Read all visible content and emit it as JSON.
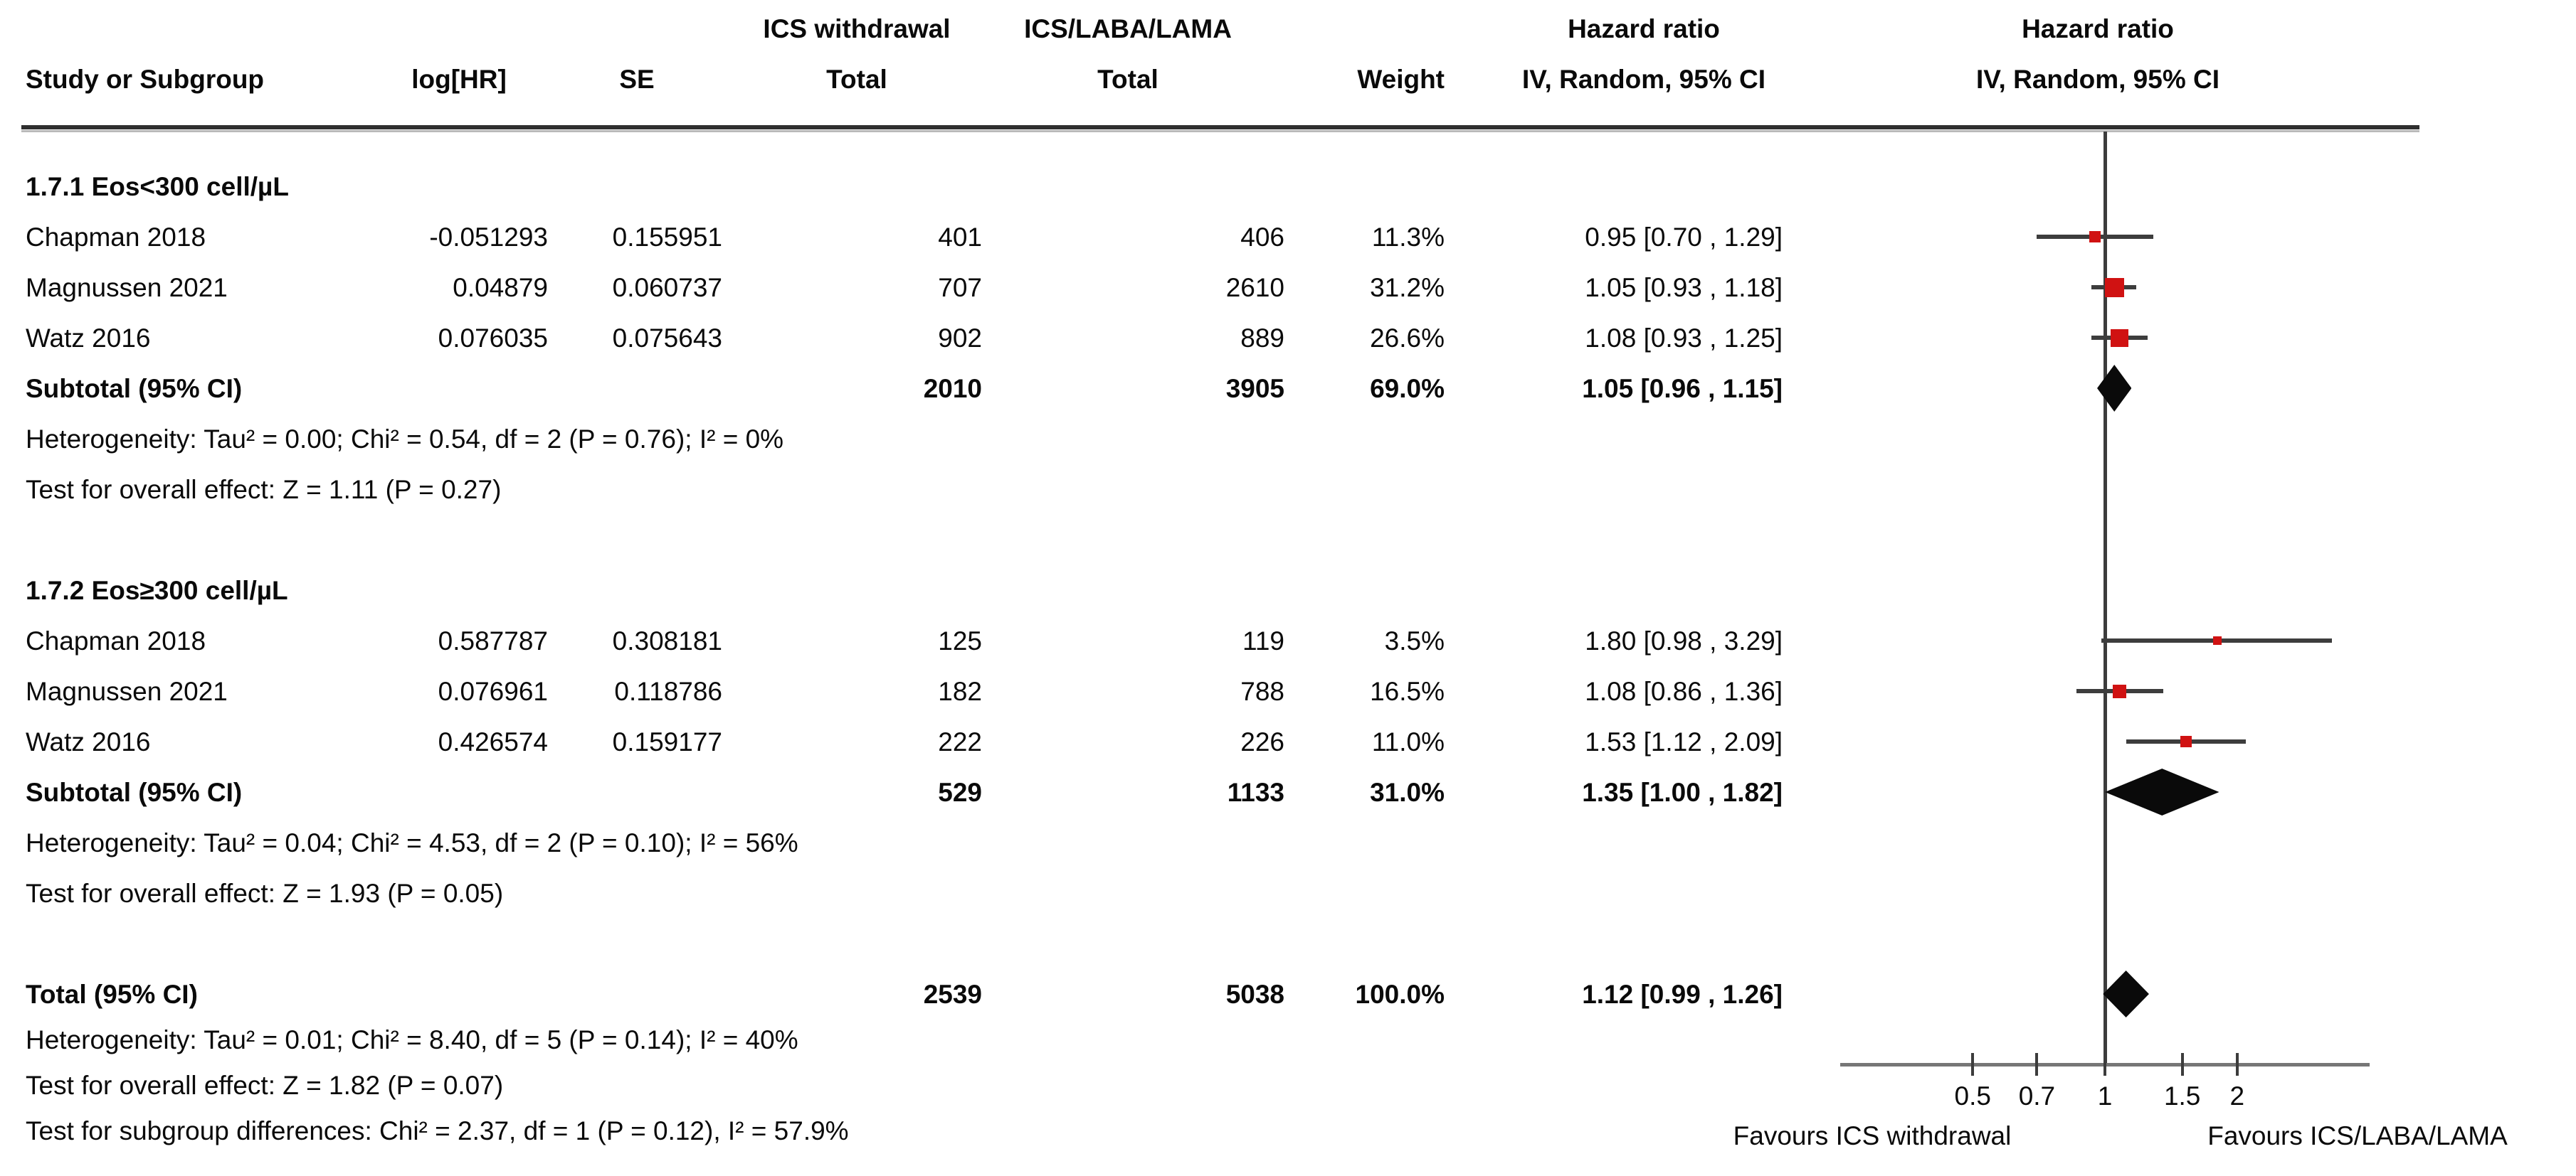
{
  "header": {
    "col_study": "Study or Subgroup",
    "col_loghr": "log[HR]",
    "col_se": "SE",
    "group_a_name": "ICS withdrawal",
    "group_b_name": "ICS/LABA/LAMA",
    "col_total": "Total",
    "col_weight": "Weight",
    "col_hr": "Hazard ratio",
    "col_hr_method": "IV, Random, 95% CI"
  },
  "chart_data": {
    "type": "forest",
    "scale": "log",
    "effect_measure": "Hazard ratio",
    "method": "IV, Random, 95% CI",
    "x_axis": {
      "ticks": [
        0.5,
        0.7,
        1,
        1.5,
        2
      ],
      "tick_labels": [
        "0.5",
        "0.7",
        "1",
        "1.5",
        "2"
      ],
      "range": [
        0.25,
        4
      ],
      "null_line": 1
    },
    "favours_left": "Favours ICS withdrawal",
    "favours_right": "Favours ICS/LABA/LAMA",
    "subgroups": [
      {
        "label": "1.7.1 Eos<300 cell/µL",
        "studies": [
          {
            "study": "Chapman 2018",
            "log_hr": "-0.051293",
            "se": "0.155951",
            "total_a": "401",
            "total_b": "406",
            "weight": "11.3%",
            "ci_text": "0.95 [0.70 , 1.29]",
            "hr": 0.95,
            "lo": 0.7,
            "hi": 1.29,
            "weight_pct": 11.3
          },
          {
            "study": "Magnussen 2021",
            "log_hr": "0.04879",
            "se": "0.060737",
            "total_a": "707",
            "total_b": "2610",
            "weight": "31.2%",
            "ci_text": "1.05 [0.93 , 1.18]",
            "hr": 1.05,
            "lo": 0.93,
            "hi": 1.18,
            "weight_pct": 31.2
          },
          {
            "study": "Watz 2016",
            "log_hr": "0.076035",
            "se": "0.075643",
            "total_a": "902",
            "total_b": "889",
            "weight": "26.6%",
            "ci_text": "1.08 [0.93 , 1.25]",
            "hr": 1.08,
            "lo": 0.93,
            "hi": 1.25,
            "weight_pct": 26.6
          }
        ],
        "subtotal": {
          "label": "Subtotal (95% CI)",
          "total_a": "2010",
          "total_b": "3905",
          "weight": "69.0%",
          "ci_text": "1.05 [0.96 , 1.15]",
          "hr": 1.05,
          "lo": 0.96,
          "hi": 1.15
        },
        "heterogeneity": "Heterogeneity: Tau² = 0.00; Chi² = 0.54, df = 2 (P = 0.76); I² = 0%",
        "overall_effect": "Test for overall effect: Z = 1.11 (P = 0.27)"
      },
      {
        "label": "1.7.2 Eos≥300 cell/µL",
        "studies": [
          {
            "study": "Chapman 2018",
            "log_hr": "0.587787",
            "se": "0.308181",
            "total_a": "125",
            "total_b": "119",
            "weight": "3.5%",
            "ci_text": "1.80 [0.98 , 3.29]",
            "hr": 1.8,
            "lo": 0.98,
            "hi": 3.29,
            "weight_pct": 3.5
          },
          {
            "study": "Magnussen 2021",
            "log_hr": "0.076961",
            "se": "0.118786",
            "total_a": "182",
            "total_b": "788",
            "weight": "16.5%",
            "ci_text": "1.08 [0.86 , 1.36]",
            "hr": 1.08,
            "lo": 0.86,
            "hi": 1.36,
            "weight_pct": 16.5
          },
          {
            "study": "Watz 2016",
            "log_hr": "0.426574",
            "se": "0.159177",
            "total_a": "222",
            "total_b": "226",
            "weight": "11.0%",
            "ci_text": "1.53 [1.12 , 2.09]",
            "hr": 1.53,
            "lo": 1.12,
            "hi": 2.09,
            "weight_pct": 11.0
          }
        ],
        "subtotal": {
          "label": "Subtotal (95% CI)",
          "total_a": "529",
          "total_b": "1133",
          "weight": "31.0%",
          "ci_text": "1.35 [1.00 , 1.82]",
          "hr": 1.35,
          "lo": 1.0,
          "hi": 1.82
        },
        "heterogeneity": "Heterogeneity: Tau² = 0.04; Chi² = 4.53, df = 2 (P = 0.10); I² = 56%",
        "overall_effect": "Test for overall effect: Z = 1.93 (P = 0.05)"
      }
    ],
    "total": {
      "label": "Total (95% CI)",
      "total_a": "2539",
      "total_b": "5038",
      "weight": "100.0%",
      "ci_text": "1.12 [0.99 , 1.26]",
      "hr": 1.12,
      "lo": 0.99,
      "hi": 1.26
    },
    "total_heterogeneity": "Heterogeneity: Tau² = 0.01; Chi² = 8.40, df = 5 (P = 0.14); I² = 40%",
    "total_overall_effect": "Test for overall effect: Z = 1.82 (P = 0.07)",
    "subgroup_differences": "Test for subgroup differences: Chi² = 2.37, df = 1 (P = 0.12), I² = 57.9%",
    "colors": {
      "square": "#d01212",
      "diamond": "#0a0a0a",
      "ci_line": "#3d3d3d",
      "axis": "#767676",
      "rule": "#2f2f2f"
    }
  }
}
